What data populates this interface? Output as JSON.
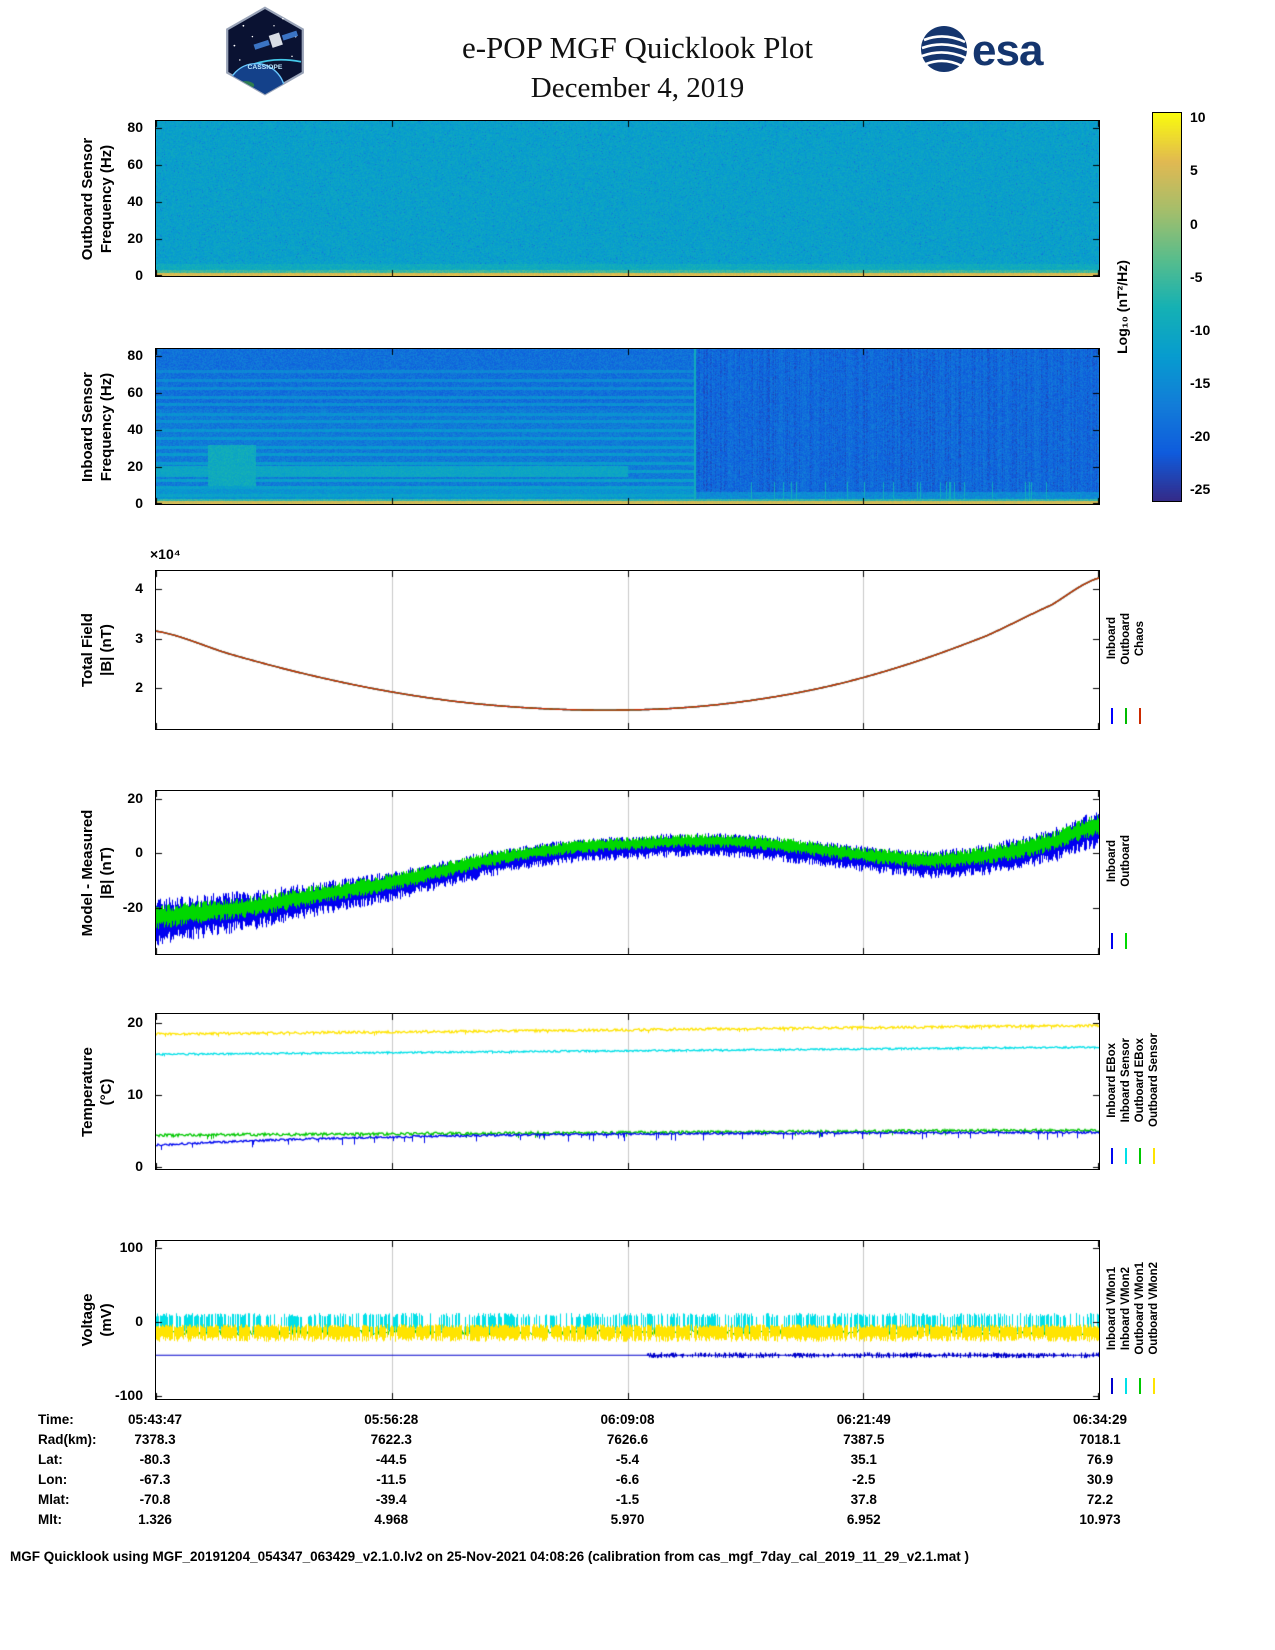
{
  "header": {
    "title": "e-POP MGF Quicklook Plot",
    "date": "December 4, 2019",
    "esa_logo_text": "esa",
    "cassiope_text": "CASSIOPE"
  },
  "colorbar": {
    "label": "Log₁₀ (nT²/Hz)",
    "ticks": [
      10,
      5,
      0,
      -5,
      -10,
      -15,
      -20,
      -25
    ],
    "range": [
      -26.2,
      10.5
    ],
    "colormap": "parula"
  },
  "chart_data": {
    "type": "multi-panel-timeseries",
    "x": {
      "tick_positions": [
        0,
        0.25,
        0.5,
        0.75,
        1
      ],
      "tick_labels": [
        "05:43:47",
        "05:56:28",
        "06:09:08",
        "06:21:49",
        "06:34:29"
      ]
    },
    "panels": [
      {
        "id": "outboard-spectrogram",
        "type": "heatmap",
        "ylabel": [
          "Outboard Sensor",
          "Frequency (Hz)"
        ],
        "ylim": [
          0,
          84
        ],
        "yticks": [
          0,
          20,
          40,
          60,
          80
        ],
        "spectro": {
          "base_level": -11.5,
          "noise": 4,
          "zero_line_level": 5.5
        }
      },
      {
        "id": "inboard-spectrogram",
        "type": "heatmap",
        "ylabel": [
          "Inboard Sensor",
          "Frequency (Hz)"
        ],
        "ylim": [
          0,
          84
        ],
        "yticks": [
          0,
          20,
          40,
          60,
          80
        ],
        "spectro": {
          "base_level": -20,
          "noise": 5,
          "zero_line_level": 4.5,
          "mode_change_x": 0.57,
          "harmonic_level": -11,
          "harmonic_lines_hz": [
            5,
            9,
            13,
            18,
            22,
            27,
            31,
            36,
            40,
            45,
            49,
            54,
            58,
            63,
            67,
            72
          ]
        }
      },
      {
        "id": "total-field",
        "type": "line",
        "ylabel": [
          "Total Field",
          "|B| (nT)"
        ],
        "exponent_label": "×10⁴",
        "ylim": [
          11800,
          43600
        ],
        "yticks": [
          20000,
          30000,
          40000
        ],
        "ytick_labels": [
          "2",
          "3",
          "4"
        ],
        "legend": [
          {
            "label": "Inboard",
            "color": "#0000ff"
          },
          {
            "label": "Outboard",
            "color": "#00bb00"
          },
          {
            "label": "Chaos",
            "color": "#cc2a00"
          }
        ],
        "points": [
          [
            0,
            31500
          ],
          [
            0.08,
            26800
          ],
          [
            0.16,
            22800
          ],
          [
            0.24,
            19600
          ],
          [
            0.32,
            17300
          ],
          [
            0.4,
            16000
          ],
          [
            0.48,
            15600
          ],
          [
            0.56,
            16100
          ],
          [
            0.64,
            17800
          ],
          [
            0.72,
            20700
          ],
          [
            0.8,
            25000
          ],
          [
            0.88,
            30500
          ],
          [
            0.95,
            36800
          ],
          [
            1,
            42200
          ]
        ]
      },
      {
        "id": "model-minus-measured",
        "type": "noisy-line",
        "ylabel": [
          "Model - Measured",
          "|B| (nT)"
        ],
        "ylim": [
          -37,
          23
        ],
        "yticks": [
          -20,
          0,
          20
        ],
        "legend": [
          {
            "label": "Inboard",
            "color": "#0000f0"
          },
          {
            "label": "Outboard",
            "color": "#00d800"
          }
        ],
        "mean_points": [
          [
            0,
            -24
          ],
          [
            0.05,
            -22
          ],
          [
            0.1,
            -20
          ],
          [
            0.15,
            -17
          ],
          [
            0.2,
            -14
          ],
          [
            0.25,
            -11
          ],
          [
            0.3,
            -7
          ],
          [
            0.35,
            -3
          ],
          [
            0.4,
            0
          ],
          [
            0.45,
            2
          ],
          [
            0.5,
            3
          ],
          [
            0.55,
            4
          ],
          [
            0.6,
            4
          ],
          [
            0.65,
            3
          ],
          [
            0.7,
            1
          ],
          [
            0.75,
            -1
          ],
          [
            0.78,
            -2
          ],
          [
            0.82,
            -3
          ],
          [
            0.86,
            -2
          ],
          [
            0.9,
            0
          ],
          [
            0.95,
            4
          ],
          [
            1,
            10
          ]
        ],
        "blue_amp": [
          9,
          6,
          4.5,
          4.5,
          5,
          7
        ],
        "green_amp": [
          4.5,
          3.5,
          2.5,
          2.5,
          3,
          4
        ]
      },
      {
        "id": "temperature",
        "type": "line",
        "ylabel": [
          "Temperature",
          "(°C)"
        ],
        "ylim": [
          -0.3,
          21.2
        ],
        "yticks": [
          0,
          10,
          20
        ],
        "legend": [
          {
            "label": "Inboard EBox",
            "color": "#0008f0"
          },
          {
            "label": "Inboard Sensor",
            "color": "#00e0e8"
          },
          {
            "label": "Outboard EBox",
            "color": "#00c800"
          },
          {
            "label": "Outboard Sensor",
            "color": "#ffe400"
          }
        ],
        "series": [
          {
            "name": "outboard-sensor",
            "color": "#ffe400",
            "start": 18.4,
            "end": 19.6,
            "noise": 0.18,
            "spike": 0.5
          },
          {
            "name": "inboard-sensor",
            "color": "#00e0e8",
            "start": 15.6,
            "end": 16.6,
            "noise": 0.12,
            "spike": 0.3
          },
          {
            "name": "outboard-ebox",
            "color": "#00c800",
            "start": 4.4,
            "end": 5.1,
            "noise": 0.2,
            "spike": 0.7
          },
          {
            "name": "inboard-ebox",
            "color": "#0008f0",
            "start": 3.0,
            "end": 4.8,
            "noise": 0.15,
            "spike": 1.0,
            "fast_rise": true
          }
        ]
      },
      {
        "id": "voltage",
        "type": "noisy-bands",
        "ylabel": [
          "Voltage",
          "(mV)"
        ],
        "ylim": [
          -104,
          109
        ],
        "yticks": [
          -100,
          0,
          100
        ],
        "legend": [
          {
            "label": "Inboard VMon1",
            "color": "#0000cc"
          },
          {
            "label": "Inboard VMon2",
            "color": "#00e0e8"
          },
          {
            "label": "Outboard VMon1",
            "color": "#00c800"
          },
          {
            "label": "Outboard VMon2",
            "color": "#ffe400"
          }
        ],
        "bands": [
          {
            "name": "cyan-comb",
            "color": "#00e0e8",
            "top": 12,
            "bottom": -18,
            "density": 0.55
          },
          {
            "name": "green-line",
            "color": "#00c800",
            "center": -14,
            "noise": 4
          },
          {
            "name": "yellow-comb",
            "color": "#ffe400",
            "top": -3,
            "bottom": -27,
            "density": 0.9
          },
          {
            "name": "blue-line",
            "color": "#0000cc",
            "level": -45,
            "noisy_after": 0.52,
            "noise": 4
          }
        ]
      }
    ]
  },
  "footer_table": {
    "rows": [
      {
        "label": "Time:",
        "values": [
          "05:43:47",
          "05:56:28",
          "06:09:08",
          "06:21:49",
          "06:34:29"
        ]
      },
      {
        "label": "Rad(km):",
        "values": [
          "7378.3",
          "7622.3",
          "7626.6",
          "7387.5",
          "7018.1"
        ]
      },
      {
        "label": "Lat:",
        "values": [
          "-80.3",
          "-44.5",
          "-5.4",
          "35.1",
          "76.9"
        ]
      },
      {
        "label": "Lon:",
        "values": [
          "-67.3",
          "-11.5",
          "-6.6",
          "-2.5",
          "30.9"
        ]
      },
      {
        "label": "Mlat:",
        "values": [
          "-70.8",
          "-39.4",
          "-1.5",
          "37.8",
          "72.2"
        ]
      },
      {
        "label": "Mlt:",
        "values": [
          "1.326",
          "4.968",
          "5.970",
          "6.952",
          "10.973"
        ]
      }
    ]
  },
  "footer_note": "MGF Quicklook using MGF_20191204_054347_063429_v2.1.0.lv2 on 25-Nov-2021 04:08:26 (calibration from cas_mgf_7day_cal_2019_11_29_v2.1.mat )"
}
